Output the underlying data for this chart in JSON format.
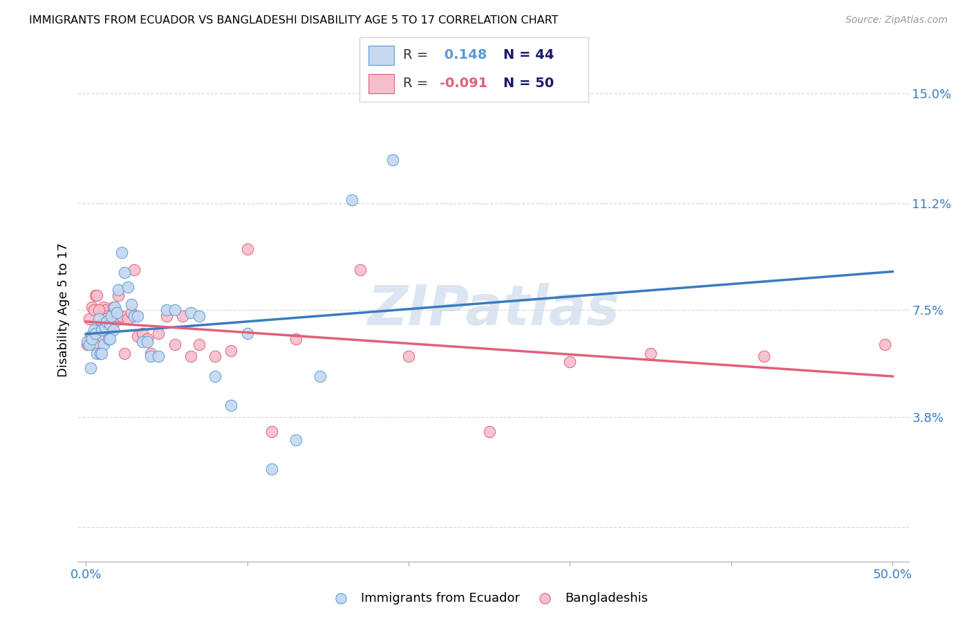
{
  "title": "IMMIGRANTS FROM ECUADOR VS BANGLADESHI DISABILITY AGE 5 TO 17 CORRELATION CHART",
  "source": "Source: ZipAtlas.com",
  "ylabel": "Disability Age 5 to 17",
  "yticks": [
    0.0,
    0.038,
    0.075,
    0.112,
    0.15
  ],
  "ytick_labels": [
    "",
    "3.8%",
    "7.5%",
    "11.2%",
    "15.0%"
  ],
  "xticks": [
    0.0,
    0.1,
    0.2,
    0.3,
    0.4,
    0.5
  ],
  "xtick_labels": [
    "0.0%",
    "",
    "",
    "",
    "",
    "50.0%"
  ],
  "xlim": [
    -0.005,
    0.51
  ],
  "ylim": [
    -0.012,
    0.162
  ],
  "label1": "Immigrants from Ecuador",
  "label2": "Bangladeshis",
  "color1_fill": "#c5d8f0",
  "color1_edge": "#5b9bd5",
  "color2_fill": "#f5bfcc",
  "color2_edge": "#e0607a",
  "trendline1_color": "#3a7bbf",
  "trendline2_color": "#e0607a",
  "watermark": "ZIPatlas",
  "watermark_color": "#dce6f2",
  "grid_color": "#d8d8d8",
  "blue_points": [
    [
      0.001,
      0.064
    ],
    [
      0.002,
      0.063
    ],
    [
      0.003,
      0.055
    ],
    [
      0.004,
      0.065
    ],
    [
      0.005,
      0.068
    ],
    [
      0.006,
      0.067
    ],
    [
      0.007,
      0.06
    ],
    [
      0.008,
      0.072
    ],
    [
      0.009,
      0.06
    ],
    [
      0.01,
      0.068
    ],
    [
      0.011,
      0.063
    ],
    [
      0.012,
      0.069
    ],
    [
      0.013,
      0.071
    ],
    [
      0.014,
      0.065
    ],
    [
      0.015,
      0.07
    ],
    [
      0.016,
      0.073
    ],
    [
      0.017,
      0.068
    ],
    [
      0.018,
      0.076
    ],
    [
      0.019,
      0.074
    ],
    [
      0.02,
      0.082
    ],
    [
      0.022,
      0.095
    ],
    [
      0.024,
      0.088
    ],
    [
      0.026,
      0.083
    ],
    [
      0.028,
      0.077
    ],
    [
      0.03,
      0.073
    ],
    [
      0.032,
      0.073
    ],
    [
      0.035,
      0.064
    ],
    [
      0.038,
      0.064
    ],
    [
      0.04,
      0.059
    ],
    [
      0.045,
      0.059
    ],
    [
      0.05,
      0.075
    ],
    [
      0.055,
      0.075
    ],
    [
      0.065,
      0.074
    ],
    [
      0.07,
      0.073
    ],
    [
      0.08,
      0.052
    ],
    [
      0.09,
      0.042
    ],
    [
      0.1,
      0.067
    ],
    [
      0.115,
      0.02
    ],
    [
      0.13,
      0.03
    ],
    [
      0.145,
      0.052
    ],
    [
      0.165,
      0.113
    ],
    [
      0.19,
      0.127
    ],
    [
      0.01,
      0.06
    ],
    [
      0.015,
      0.065
    ]
  ],
  "pink_points": [
    [
      0.001,
      0.063
    ],
    [
      0.002,
      0.072
    ],
    [
      0.003,
      0.066
    ],
    [
      0.004,
      0.076
    ],
    [
      0.005,
      0.075
    ],
    [
      0.006,
      0.08
    ],
    [
      0.007,
      0.08
    ],
    [
      0.008,
      0.068
    ],
    [
      0.009,
      0.065
    ],
    [
      0.01,
      0.07
    ],
    [
      0.011,
      0.076
    ],
    [
      0.012,
      0.075
    ],
    [
      0.013,
      0.073
    ],
    [
      0.014,
      0.068
    ],
    [
      0.015,
      0.069
    ],
    [
      0.016,
      0.072
    ],
    [
      0.017,
      0.076
    ],
    [
      0.018,
      0.071
    ],
    [
      0.019,
      0.073
    ],
    [
      0.02,
      0.08
    ],
    [
      0.022,
      0.073
    ],
    [
      0.024,
      0.06
    ],
    [
      0.026,
      0.072
    ],
    [
      0.028,
      0.074
    ],
    [
      0.03,
      0.089
    ],
    [
      0.032,
      0.066
    ],
    [
      0.035,
      0.067
    ],
    [
      0.038,
      0.065
    ],
    [
      0.04,
      0.06
    ],
    [
      0.045,
      0.067
    ],
    [
      0.05,
      0.073
    ],
    [
      0.055,
      0.063
    ],
    [
      0.06,
      0.073
    ],
    [
      0.065,
      0.059
    ],
    [
      0.07,
      0.063
    ],
    [
      0.08,
      0.059
    ],
    [
      0.09,
      0.061
    ],
    [
      0.1,
      0.096
    ],
    [
      0.115,
      0.033
    ],
    [
      0.13,
      0.065
    ],
    [
      0.17,
      0.089
    ],
    [
      0.2,
      0.059
    ],
    [
      0.25,
      0.033
    ],
    [
      0.3,
      0.057
    ],
    [
      0.35,
      0.06
    ],
    [
      0.42,
      0.059
    ],
    [
      0.495,
      0.063
    ],
    [
      0.005,
      0.063
    ],
    [
      0.008,
      0.075
    ],
    [
      0.012,
      0.072
    ]
  ]
}
